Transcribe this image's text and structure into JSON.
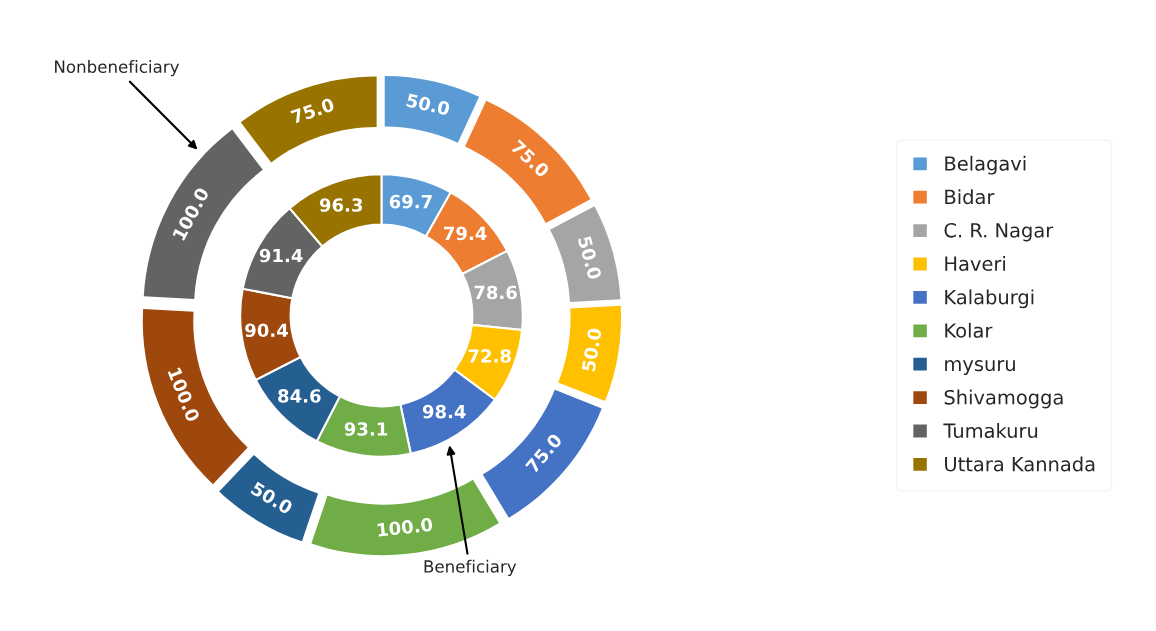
{
  "chart_data": {
    "type": "donut",
    "categories": [
      "Belagavi",
      "Bidar",
      "C. R. Nagar",
      "Haveri",
      "Kalaburgi",
      "Kolar",
      "mysuru",
      "Shivamogga",
      "Tumakuru",
      "Uttara Kannada"
    ],
    "colors": [
      "#5b9bd5",
      "#ed7d31",
      "#a5a5a5",
      "#ffc000",
      "#4472c4",
      "#70ad47",
      "#255e91",
      "#9e480e",
      "#636363",
      "#997300"
    ],
    "series": [
      {
        "name": "Beneficiary",
        "values": [
          69.7,
          79.4,
          78.6,
          72.8,
          98.4,
          93.1,
          84.6,
          90.4,
          91.4,
          96.3
        ],
        "value_labels": [
          "69.7",
          "79.4",
          "78.6",
          "72.8",
          "98.4",
          "93.1",
          "84.6",
          "90.4",
          "91.4",
          "96.3"
        ]
      },
      {
        "name": "Nonbeneficiary",
        "values": [
          50.0,
          75.0,
          50.0,
          50.0,
          75.0,
          100.0,
          50.0,
          100.0,
          100.0,
          75.0
        ],
        "value_labels": [
          "50.0",
          "75.0",
          "50.0",
          "50.0",
          "75.0",
          "100.0",
          "50.0",
          "100.0",
          "100.0",
          "75.0"
        ]
      }
    ],
    "legend": "right"
  }
}
